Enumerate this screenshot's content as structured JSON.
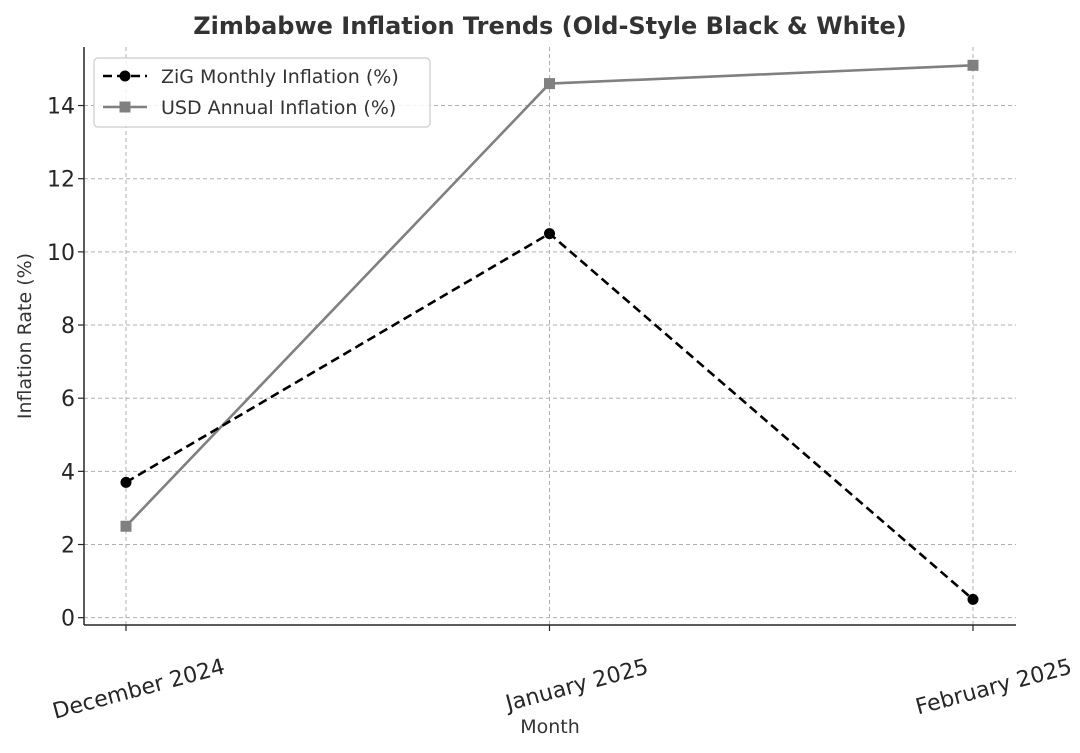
{
  "chart_data": {
    "type": "line",
    "title": "Zimbabwe Inflation Trends (Old-Style Black & White)",
    "xlabel": "Month",
    "ylabel": "Inflation Rate (%)",
    "categories": [
      "December 2024",
      "January 2025",
      "February 2025"
    ],
    "ylim": [
      -0.2,
      15.6
    ],
    "yticks": [
      0,
      2,
      4,
      6,
      8,
      10,
      12,
      14
    ],
    "grid": true,
    "legend_position": "top-left",
    "series": [
      {
        "name": "ZiG Monthly Inflation (%)",
        "values": [
          3.7,
          10.5,
          0.5
        ],
        "color": "#000000",
        "line_style": "dashed",
        "marker": "circle"
      },
      {
        "name": "USD Annual Inflation (%)",
        "values": [
          2.5,
          14.6,
          15.1
        ],
        "color": "#808080",
        "line_style": "solid",
        "marker": "square"
      }
    ]
  }
}
